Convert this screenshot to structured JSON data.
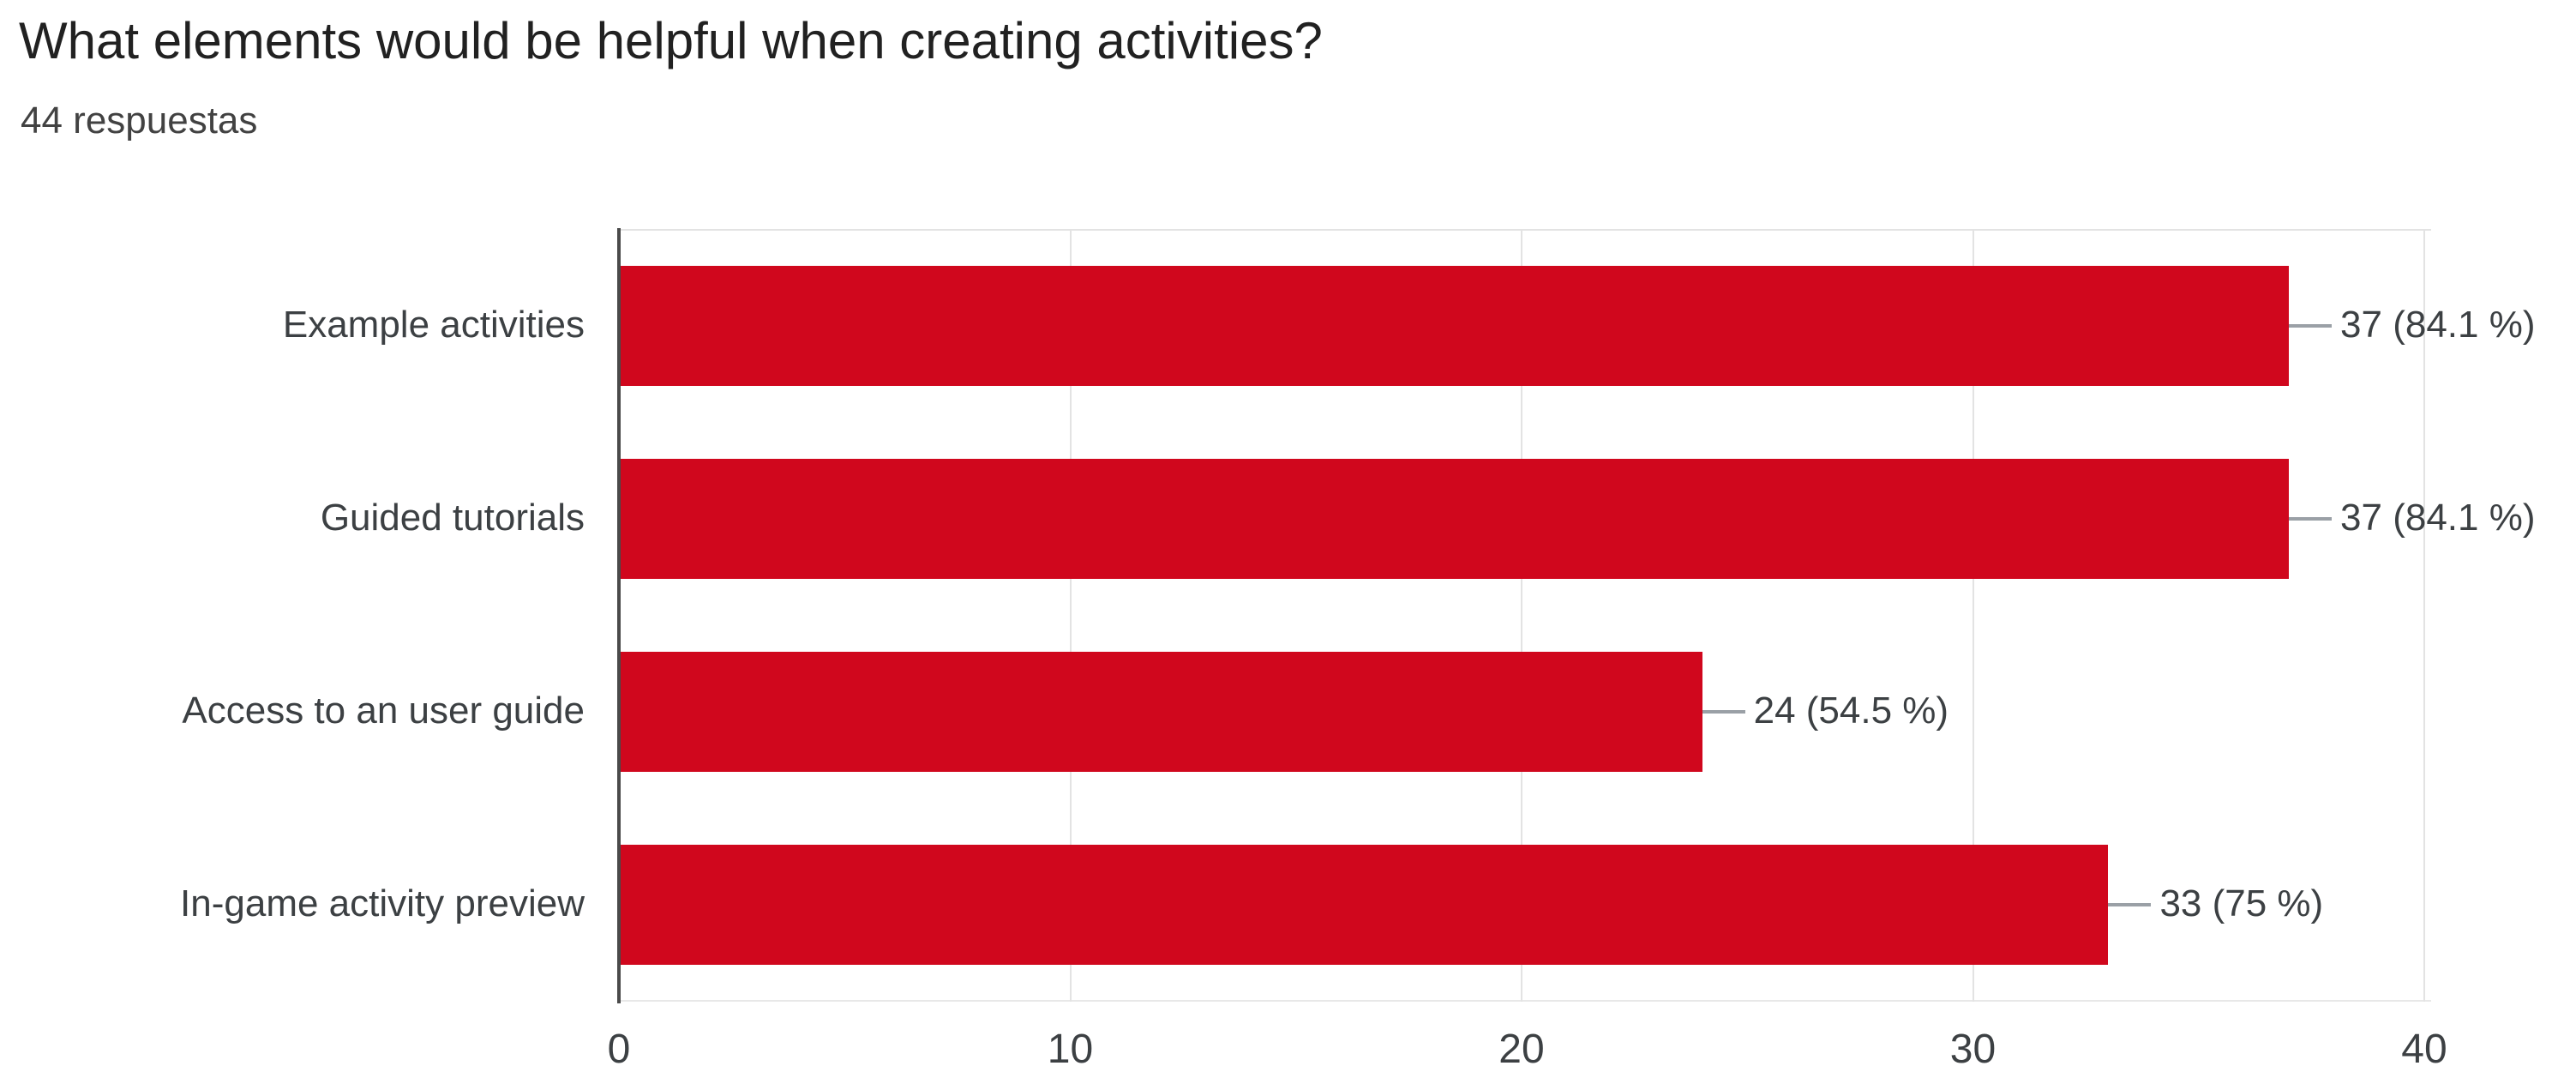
{
  "header": {
    "title": "What elements would be helpful when creating activities?",
    "subtitle": "44 respuestas"
  },
  "chart_data": {
    "type": "bar",
    "orientation": "horizontal",
    "title": "What elements would be helpful when creating activities?",
    "subtitle": "44 respuestas",
    "categories": [
      "Example activities",
      "Guided tutorials",
      "Access to an user guide",
      "In-game activity preview"
    ],
    "values": [
      37,
      37,
      24,
      33
    ],
    "percents": [
      84.1,
      84.1,
      54.5,
      75
    ],
    "value_labels": [
      "37 (84.1 %)",
      "37 (84.1 %)",
      "24 (54.5 %)",
      "33 (75 %)"
    ],
    "x_ticks": [
      0,
      10,
      20,
      30,
      40
    ],
    "xlim": [
      0,
      40
    ],
    "grid": true,
    "legend_position": "none",
    "bar_color": "#d0071d",
    "axis_color": "#4a4a4a",
    "gridline_color": "#e3e3e3",
    "leader_color": "#9aa0a6",
    "text_color": "#3c4043"
  }
}
